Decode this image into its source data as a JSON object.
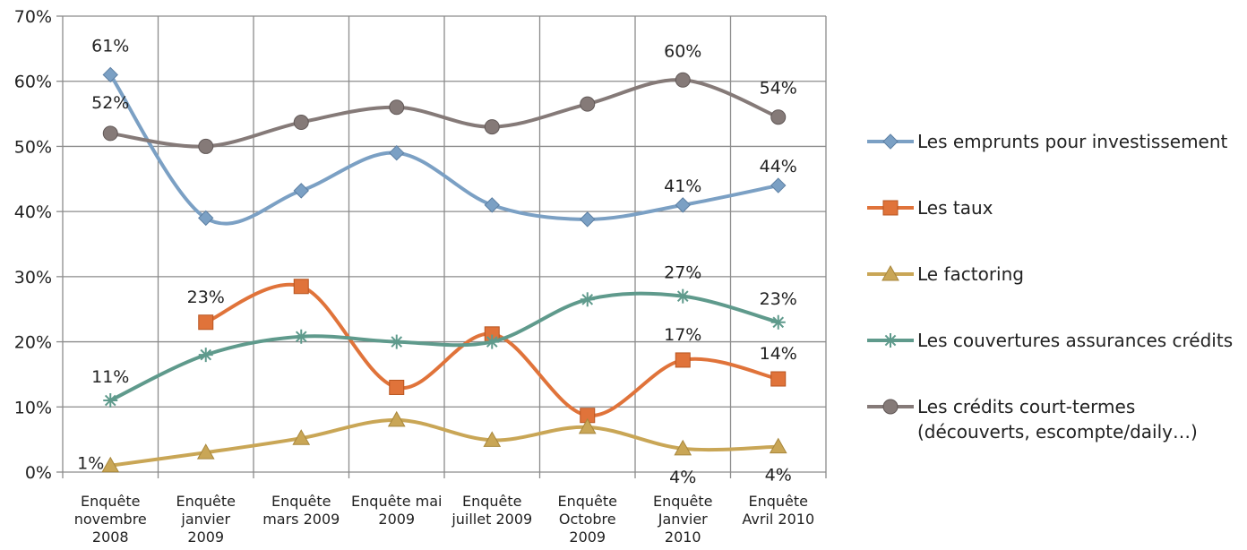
{
  "chart_data": {
    "type": "line",
    "title": "",
    "xlabel": "",
    "ylabel": "",
    "ylim": [
      0,
      70
    ],
    "yticks": [
      "0%",
      "10%",
      "20%",
      "30%",
      "40%",
      "50%",
      "60%",
      "70%"
    ],
    "grid": true,
    "legend_position": "right",
    "categories": [
      [
        "Enquête",
        "novembre",
        "2008"
      ],
      [
        "Enquête",
        "janvier",
        "2009"
      ],
      [
        "Enquête",
        "mars 2009"
      ],
      [
        "Enquête mai",
        "2009"
      ],
      [
        "Enquête",
        "juillet 2009"
      ],
      [
        "Enquête",
        "Octobre",
        "2009"
      ],
      [
        "Enquête",
        "Janvier",
        "2010"
      ],
      [
        "Enquête",
        "Avril 2010"
      ]
    ],
    "series": [
      {
        "name": [
          "Les emprunts pour investissement"
        ],
        "color": "#7ba0c4",
        "marker": "diamond",
        "values": [
          61,
          39,
          43.2,
          49,
          41,
          38.8,
          41,
          44
        ],
        "labels": [
          "61%",
          null,
          null,
          null,
          null,
          null,
          "41%",
          "44%"
        ]
      },
      {
        "name": [
          "Les taux"
        ],
        "color": "#e0733a",
        "marker": "square",
        "values": [
          null,
          23,
          28.5,
          13,
          21.2,
          8.7,
          17.2,
          14.3
        ],
        "labels": [
          null,
          "23%",
          null,
          null,
          null,
          null,
          "17%",
          "14%"
        ]
      },
      {
        "name": [
          "Le factoring"
        ],
        "color": "#c9a656",
        "marker": "triangle",
        "values": [
          1,
          3,
          5.2,
          8,
          4.9,
          6.9,
          3.6,
          3.9
        ],
        "labels": [
          "1%",
          null,
          null,
          null,
          null,
          null,
          "4%",
          "4%"
        ]
      },
      {
        "name": [
          "Les couvertures assurances crédits"
        ],
        "color": "#5f9a8c",
        "marker": "asterisk",
        "values": [
          11,
          18,
          20.8,
          20,
          20,
          26.5,
          27,
          23
        ],
        "labels": [
          "11%",
          null,
          null,
          null,
          null,
          null,
          "27%",
          "23%"
        ]
      },
      {
        "name": [
          "Les crédits court-termes",
          "(découverts, escompte/daily…)"
        ],
        "color": "#857a78",
        "marker": "circle",
        "values": [
          52,
          50,
          53.7,
          56,
          53,
          56.5,
          60.2,
          54.5
        ],
        "labels": [
          "52%",
          null,
          null,
          null,
          null,
          null,
          "60%",
          "54%"
        ]
      }
    ]
  }
}
